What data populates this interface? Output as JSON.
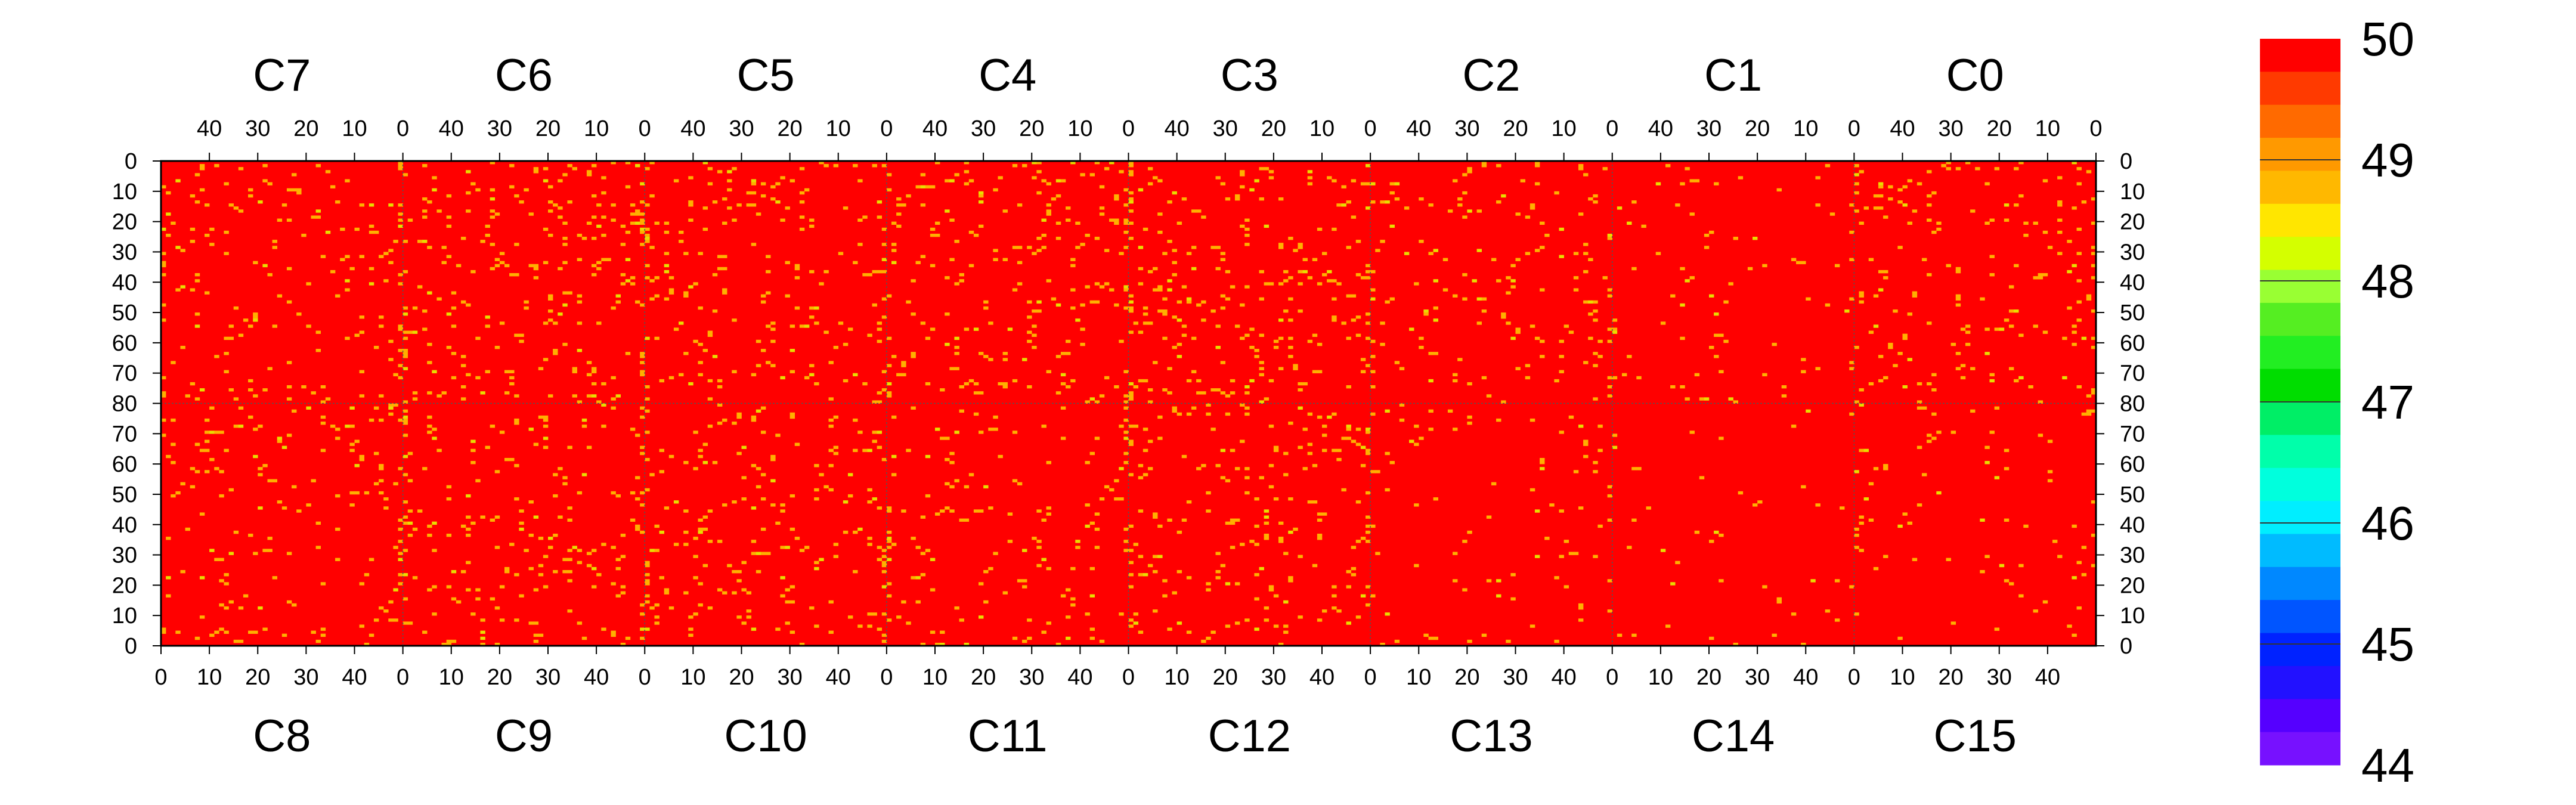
{
  "chart_data": {
    "type": "heatmap",
    "title": "",
    "xlabel": "",
    "ylabel": "",
    "top_chips": [
      "C7",
      "C6",
      "C5",
      "C4",
      "C3",
      "C2",
      "C1",
      "C0"
    ],
    "bottom_chips": [
      "C8",
      "C9",
      "C10",
      "C11",
      "C12",
      "C13",
      "C14",
      "C15"
    ],
    "columns_per_chip": 50,
    "rows_per_half": 80,
    "top_x_ticks": [
      40,
      30,
      20,
      10,
      0
    ],
    "bottom_x_ticks": [
      0,
      10,
      20,
      30,
      40
    ],
    "left_y_ticks_top_half": [
      0,
      10,
      20,
      30,
      40,
      50,
      60,
      70,
      80
    ],
    "left_y_ticks_bottom_half": [
      70,
      60,
      50,
      40,
      30,
      20,
      10,
      0
    ],
    "right_y_ticks_top_half": [
      0,
      10,
      20,
      30,
      40,
      50,
      60,
      70,
      80
    ],
    "right_y_ticks_bottom_half": [
      70,
      60,
      50,
      40,
      30,
      20,
      10,
      0
    ],
    "zrange": [
      44,
      50
    ],
    "color_scale_labels": [
      "50",
      "49",
      "48",
      "47",
      "46",
      "45",
      "44"
    ],
    "color_scale_ticks": [
      50,
      49,
      48,
      47,
      46,
      45,
      44
    ],
    "palette_top_to_bottom": [
      "#ff0000",
      "#ff3a00",
      "#ff6a00",
      "#ff9900",
      "#ffb800",
      "#ffe600",
      "#d4ff00",
      "#99ff33",
      "#55ee22",
      "#22ee22",
      "#00dd00",
      "#00ee66",
      "#00ffaa",
      "#00ffdd",
      "#00eeff",
      "#00bbff",
      "#0088ff",
      "#0055ff",
      "#0022ff",
      "#2211ff",
      "#5500ff",
      "#7711ff"
    ],
    "dominant_value": 50,
    "dominant_color": "#ff0000",
    "secondary_value": 49.2,
    "secondary_color": "#ffb000",
    "occasional_value": 48.5,
    "occasional_color": "#e8dd00",
    "secondary_fraction_by_chip": {
      "C7": 0.035,
      "C6": 0.05,
      "C5": 0.04,
      "C4": 0.045,
      "C3": 0.05,
      "C2": 0.03,
      "C1": 0.02,
      "C0": 0.035,
      "C8": 0.035,
      "C9": 0.04,
      "C10": 0.04,
      "C11": 0.035,
      "C12": 0.04,
      "C13": 0.02,
      "C14": 0.01,
      "C15": 0.015
    }
  }
}
